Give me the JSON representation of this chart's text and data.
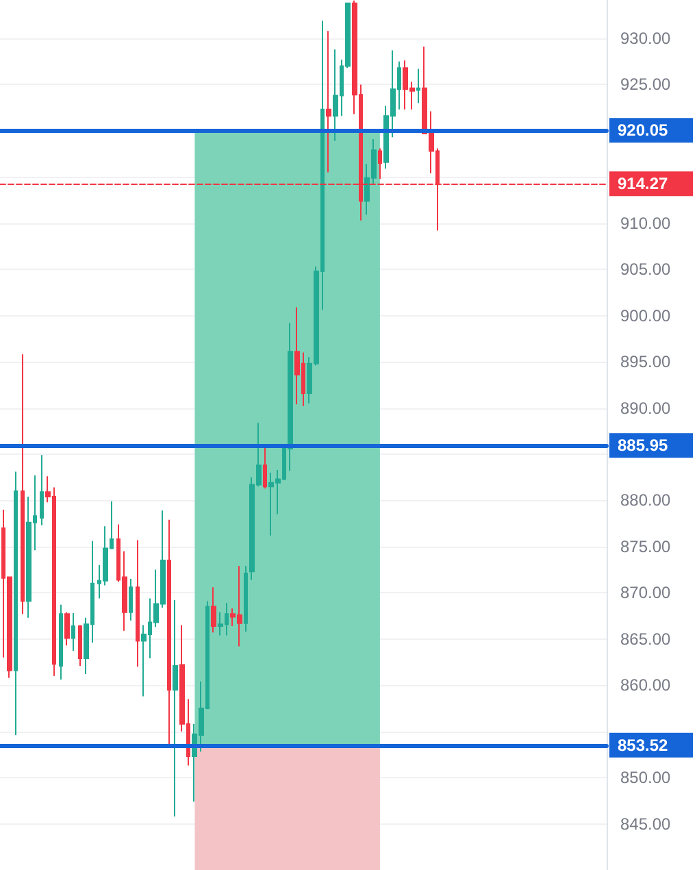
{
  "chart_data": {
    "type": "candlestick",
    "categories": [
      null,
      null,
      null,
      null,
      null,
      null,
      null,
      null,
      null,
      null,
      null,
      null,
      null,
      null,
      null,
      null,
      null,
      null,
      null,
      null,
      null,
      null,
      null,
      null,
      null,
      null,
      null,
      null,
      null,
      null,
      null,
      null,
      null,
      null,
      null,
      null,
      null,
      null,
      null,
      null,
      null,
      null,
      null,
      null,
      null,
      null,
      null,
      null,
      null,
      null,
      null,
      null,
      null,
      null,
      null,
      null,
      null,
      null,
      null,
      null,
      null,
      null,
      null,
      null,
      null,
      null,
      null,
      null,
      null,
      null,
      null,
      null,
      null,
      null,
      null,
      null,
      null,
      null,
      null,
      null,
      null,
      null,
      null,
      null,
      null,
      null,
      null,
      null,
      null,
      null,
      null,
      null,
      null,
      null,
      null
    ],
    "ohlc": [
      [
        877.0,
        879.0,
        863.0,
        871.6
      ],
      [
        871.7,
        871.7,
        860.8,
        861.6
      ],
      [
        861.6,
        883.1,
        854.6,
        881.0
      ],
      [
        881.0,
        895.8,
        867.7,
        869.1
      ],
      [
        869.1,
        880.4,
        867.3,
        877.6
      ],
      [
        877.6,
        882.7,
        874.6,
        878.3
      ],
      [
        878.1,
        884.9,
        877.3,
        880.9
      ],
      [
        880.9,
        882.6,
        879.8,
        880.4
      ],
      [
        880.4,
        881.4,
        861.0,
        862.3
      ],
      [
        862.1,
        868.7,
        860.6,
        867.7
      ],
      [
        867.7,
        867.9,
        864.3,
        865.1
      ],
      [
        865.1,
        867.8,
        863.7,
        866.4
      ],
      [
        866.4,
        866.5,
        862.1,
        862.9
      ],
      [
        862.9,
        867.3,
        861.2,
        866.6
      ],
      [
        866.6,
        875.6,
        864.6,
        871.0
      ],
      [
        871.0,
        873.0,
        869.4,
        871.3
      ],
      [
        871.3,
        877.2,
        870.8,
        874.8
      ],
      [
        874.8,
        879.9,
        874.8,
        875.8
      ],
      [
        875.8,
        877.4,
        871.2,
        871.4
      ],
      [
        871.7,
        874.5,
        865.9,
        867.9
      ],
      [
        867.9,
        871.5,
        867.0,
        870.6
      ],
      [
        870.6,
        875.7,
        862.0,
        864.8
      ],
      [
        864.8,
        866.5,
        858.8,
        865.5
      ],
      [
        865.5,
        869.4,
        862.9,
        866.8
      ],
      [
        866.8,
        872.5,
        866.3,
        868.8
      ],
      [
        868.8,
        878.9,
        868.4,
        873.5
      ],
      [
        873.5,
        877.9,
        853.2,
        859.5
      ],
      [
        859.5,
        869.2,
        845.8,
        862.1
      ],
      [
        862.2,
        866.5,
        855.0,
        855.8
      ],
      [
        855.8,
        858.5,
        851.3,
        852.3
      ],
      [
        852.3,
        855.8,
        847.4,
        854.7
      ],
      [
        854.6,
        860.4,
        852.8,
        857.5
      ],
      [
        857.5,
        869.1,
        857.4,
        868.5
      ],
      [
        868.5,
        870.6,
        865.7,
        866.4
      ],
      [
        866.4,
        867.9,
        865.4,
        866.6
      ],
      [
        866.6,
        868.9,
        865.4,
        867.7
      ],
      [
        867.7,
        868.3,
        866.4,
        867.4
      ],
      [
        867.6,
        872.9,
        864.2,
        866.7
      ],
      [
        866.7,
        872.9,
        865.8,
        872.1
      ],
      [
        872.3,
        882.5,
        871.4,
        881.7
      ],
      [
        881.7,
        888.4,
        881.5,
        883.8
      ],
      [
        883.8,
        885.7,
        881.3,
        881.5
      ],
      [
        881.5,
        883.0,
        876.2,
        881.9
      ],
      [
        881.9,
        883.3,
        878.5,
        882.3
      ],
      [
        882.3,
        885.7,
        882.2,
        885.6
      ],
      [
        885.6,
        899.2,
        883.2,
        896.1
      ],
      [
        896.1,
        900.9,
        890.4,
        893.6
      ],
      [
        894.8,
        896.0,
        890.2,
        891.6
      ],
      [
        891.6,
        895.5,
        890.5,
        894.8
      ],
      [
        894.8,
        905.3,
        894.6,
        904.8
      ],
      [
        904.8,
        931.9,
        900.6,
        922.3
      ],
      [
        922.3,
        930.8,
        915.5,
        921.6
      ],
      [
        921.6,
        928.8,
        918.9,
        923.8
      ],
      [
        923.8,
        927.7,
        921.6,
        927.0
      ],
      [
        927.0,
        933.8,
        926.8,
        933.8
      ],
      [
        933.8,
        934.1,
        921.8,
        923.9
      ],
      [
        923.9,
        925.0,
        910.3,
        912.4
      ],
      [
        912.4,
        916.4,
        910.9,
        914.9
      ],
      [
        914.9,
        919.1,
        914.3,
        917.9
      ],
      [
        917.8,
        918.1,
        914.8,
        916.5
      ],
      [
        916.6,
        922.7,
        915.9,
        921.6
      ],
      [
        921.6,
        928.7,
        919.3,
        924.5
      ],
      [
        924.5,
        927.5,
        922.3,
        926.8
      ],
      [
        926.8,
        927.6,
        922.3,
        924.5
      ],
      [
        924.6,
        925.3,
        922.3,
        924.3
      ],
      [
        924.4,
        926.7,
        923.0,
        924.6
      ],
      [
        924.6,
        929.1,
        919.7,
        919.7
      ],
      [
        919.7,
        922.1,
        915.4,
        917.8
      ],
      [
        917.8,
        918.1,
        909.2,
        914.27
      ],
      null,
      null,
      null,
      null,
      null,
      null,
      null,
      null,
      null,
      null,
      null,
      null,
      null,
      null,
      null,
      null,
      null,
      null,
      null,
      null,
      null,
      null,
      null,
      null,
      null,
      null
    ],
    "colors": [
      "#f23645",
      "#f23645",
      "#22ab94",
      "#f23645",
      "#22ab94",
      "#22ab94",
      "#22ab94",
      "#f23645",
      "#f23645",
      "#22ab94",
      "#f23645",
      "#22ab94",
      "#f23645",
      "#22ab94",
      "#22ab94",
      "#22ab94",
      "#22ab94",
      "#22ab94",
      "#f23645",
      "#f23645",
      "#22ab94",
      "#f23645",
      "#22ab94",
      "#22ab94",
      "#22ab94",
      "#22ab94",
      "#f23645",
      "#22ab94",
      "#f23645",
      "#f23645",
      "#22ab94",
      "#22ab94",
      "#22ab94",
      "#f23645",
      "#22ab94",
      "#22ab94",
      "#f23645",
      "#f23645",
      "#22ab94",
      "#22ab94",
      "#22ab94",
      "#f23645",
      "#22ab94",
      "#22ab94",
      "#22ab94",
      "#22ab94",
      "#f23645",
      "#f23645",
      "#22ab94",
      "#22ab94",
      "#22ab94",
      "#f23645",
      "#22ab94",
      "#22ab94",
      "#22ab94",
      "#f23645",
      "#f23645",
      "#22ab94",
      "#22ab94",
      "#f23645",
      "#22ab94",
      "#22ab94",
      "#22ab94",
      "#f23645",
      "#f23645",
      "#22ab94",
      "#f23645",
      "#f23645",
      "#f23645",
      null,
      null,
      null,
      null,
      null,
      null,
      null,
      null,
      null,
      null,
      null,
      null,
      null,
      null,
      null,
      null,
      null,
      null,
      null,
      null,
      null,
      null,
      null,
      null,
      null,
      null
    ],
    "ylim": [
      840,
      934.15
    ],
    "yticks": [
      {
        "value": 845,
        "label": "845.00"
      },
      {
        "value": 850,
        "label": "850.00"
      },
      {
        "value": 855,
        "label": null
      },
      {
        "value": 860,
        "label": "860.00"
      },
      {
        "value": 865,
        "label": "865.00"
      },
      {
        "value": 870,
        "label": "870.00"
      },
      {
        "value": 875,
        "label": "875.00"
      },
      {
        "value": 880,
        "label": "880.00"
      },
      {
        "value": 885,
        "label": null
      },
      {
        "value": 890,
        "label": "890.00"
      },
      {
        "value": 895,
        "label": "895.00"
      },
      {
        "value": 900,
        "label": "900.00"
      },
      {
        "value": 905,
        "label": "905.00"
      },
      {
        "value": 910,
        "label": "910.00"
      },
      {
        "value": 915,
        "label": null
      },
      {
        "value": 920,
        "label": null
      },
      {
        "value": 925,
        "label": "925.00"
      },
      {
        "value": 930,
        "label": "930.00"
      }
    ],
    "ref_lines": [
      {
        "axis": "y",
        "value": 920.05,
        "label": "920.05",
        "color": "#1565d8",
        "line_style": "solid"
      },
      {
        "axis": "y",
        "value": 885.95,
        "label": "885.95",
        "color": "#1565d8",
        "line_style": "solid"
      },
      {
        "axis": "y",
        "value": 853.52,
        "label": "853.52",
        "color": "#1565d8",
        "line_style": "solid"
      },
      {
        "axis": "y",
        "value": 914.27,
        "label": "914.27",
        "color": "#f23645",
        "line_style": "dashed"
      }
    ],
    "bands": [
      {
        "axis": "y",
        "from": 853.52,
        "to": 920.05,
        "color": "#7dd3b8"
      },
      {
        "axis": "y",
        "from": 840,
        "to": 853.52,
        "color": "#f3c3c6"
      }
    ],
    "tick_labels": "y",
    "grid": "y"
  }
}
